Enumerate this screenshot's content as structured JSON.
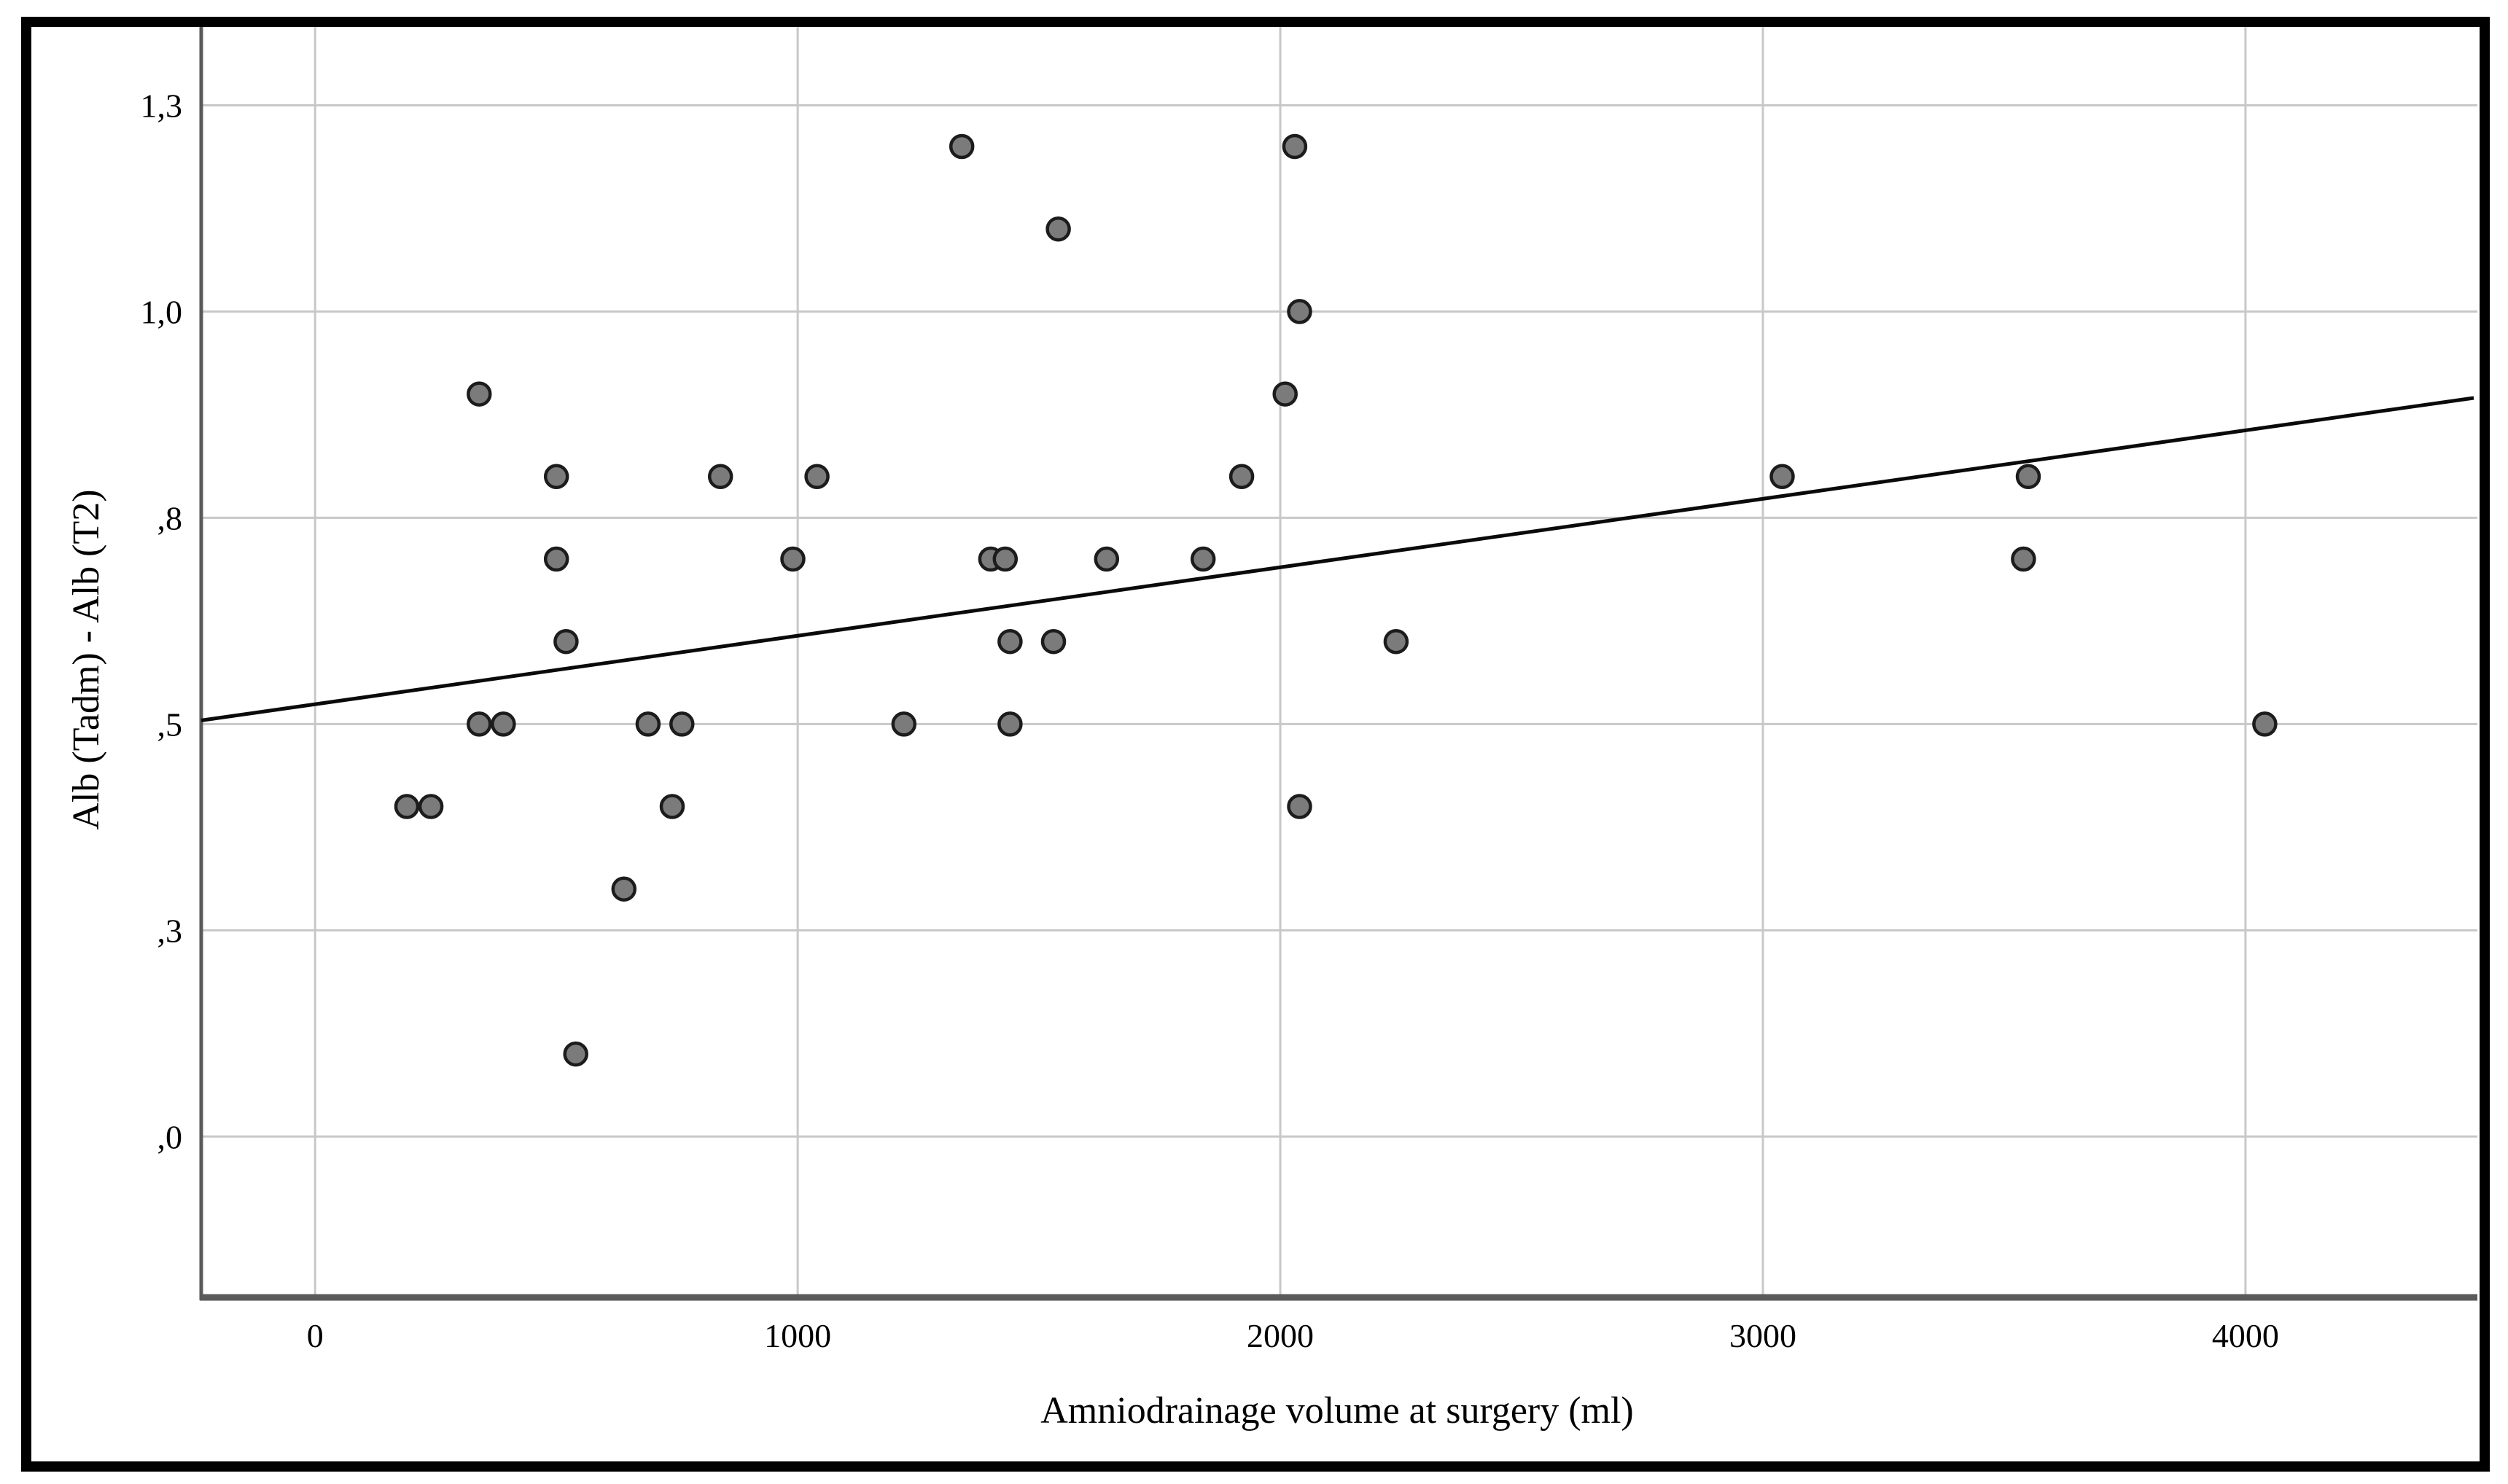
{
  "figure": {
    "background_color": "#ffffff",
    "border_color": "#000000"
  },
  "chart_data": {
    "type": "scatter",
    "title": "",
    "xlabel": "Amniodrainage volume at surgery (ml)",
    "ylabel": "Alb (Tadm) - Alb (T2)",
    "grid": true,
    "legend": "none",
    "xlim": [
      -236,
      4473
    ],
    "ylim": [
      -0.195,
      1.352
    ],
    "x_ticks": [
      {
        "value": 0,
        "label": "0"
      },
      {
        "value": 1000,
        "label": "1000"
      },
      {
        "value": 2000,
        "label": "2000"
      },
      {
        "value": 3000,
        "label": "3000"
      },
      {
        "value": 4000,
        "label": "4000"
      }
    ],
    "y_ticks": [
      {
        "value": 0.0,
        "label": ",0"
      },
      {
        "value": 0.25,
        "label": ",3"
      },
      {
        "value": 0.5,
        "label": ",5"
      },
      {
        "value": 0.75,
        "label": ",8"
      },
      {
        "value": 1.0,
        "label": "1,0"
      },
      {
        "value": 1.25,
        "label": "1,3"
      }
    ],
    "points": [
      [
        1340,
        1.2
      ],
      [
        2030,
        1.2
      ],
      [
        1540,
        1.1
      ],
      [
        2040,
        1.0
      ],
      [
        340,
        0.9
      ],
      [
        2010,
        0.9
      ],
      [
        500,
        0.8
      ],
      [
        840,
        0.8
      ],
      [
        1040,
        0.8
      ],
      [
        1920,
        0.8
      ],
      [
        3040,
        0.8
      ],
      [
        3550,
        0.8
      ],
      [
        500,
        0.7
      ],
      [
        990,
        0.7
      ],
      [
        1400,
        0.7
      ],
      [
        1430,
        0.7
      ],
      [
        1640,
        0.7
      ],
      [
        1840,
        0.7
      ],
      [
        3540,
        0.7
      ],
      [
        520,
        0.6
      ],
      [
        1440,
        0.6
      ],
      [
        1530,
        0.6
      ],
      [
        2240,
        0.6
      ],
      [
        340,
        0.5
      ],
      [
        390,
        0.5
      ],
      [
        690,
        0.5
      ],
      [
        760,
        0.5
      ],
      [
        1220,
        0.5
      ],
      [
        1440,
        0.5
      ],
      [
        4040,
        0.5
      ],
      [
        190,
        0.4
      ],
      [
        240,
        0.4
      ],
      [
        740,
        0.4
      ],
      [
        2040,
        0.4
      ],
      [
        640,
        0.3
      ],
      [
        540,
        0.1
      ]
    ],
    "regression_line": {
      "intercept": 0.524,
      "slope_per_1000ml": 0.083
    },
    "colors": {
      "point_fill": "#7b7b7b",
      "point_stroke": "#1c1c1c",
      "gridline": "#c8c8c8",
      "axis_line": "#5a5a5a",
      "fit_line": "#0a0a0a",
      "text": "#000000"
    }
  }
}
